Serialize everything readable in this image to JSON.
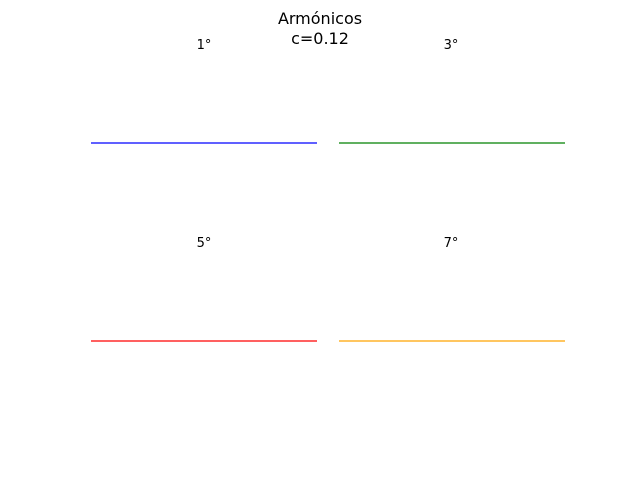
{
  "figure": {
    "title_line1": "Armónicos",
    "title_line2": "c=0.12"
  },
  "chart_data": [
    {
      "type": "line",
      "title": "1°",
      "xlabel": "",
      "ylabel": "",
      "grid": false,
      "axes_visible": false,
      "color": "#0000ff",
      "x": [
        0,
        1
      ],
      "series": [
        {
          "values": [
            0,
            0
          ]
        }
      ],
      "xlim": [
        0,
        1
      ],
      "ylim": [
        -1,
        1
      ]
    },
    {
      "type": "line",
      "title": "3°",
      "xlabel": "",
      "ylabel": "",
      "grid": false,
      "axes_visible": false,
      "color": "#008000",
      "x": [
        0,
        1
      ],
      "series": [
        {
          "values": [
            0,
            0
          ]
        }
      ],
      "xlim": [
        0,
        1
      ],
      "ylim": [
        -1,
        1
      ]
    },
    {
      "type": "line",
      "title": "5°",
      "xlabel": "",
      "ylabel": "",
      "grid": false,
      "axes_visible": false,
      "color": "#ff0000",
      "x": [
        0,
        1
      ],
      "series": [
        {
          "values": [
            0,
            0
          ]
        }
      ],
      "xlim": [
        0,
        1
      ],
      "ylim": [
        -1,
        1
      ]
    },
    {
      "type": "line",
      "title": "7°",
      "xlabel": "",
      "ylabel": "",
      "grid": false,
      "axes_visible": false,
      "color": "#ffa500",
      "x": [
        0,
        1
      ],
      "series": [
        {
          "values": [
            0,
            0
          ]
        }
      ],
      "xlim": [
        0,
        1
      ],
      "ylim": [
        -1,
        1
      ]
    }
  ]
}
